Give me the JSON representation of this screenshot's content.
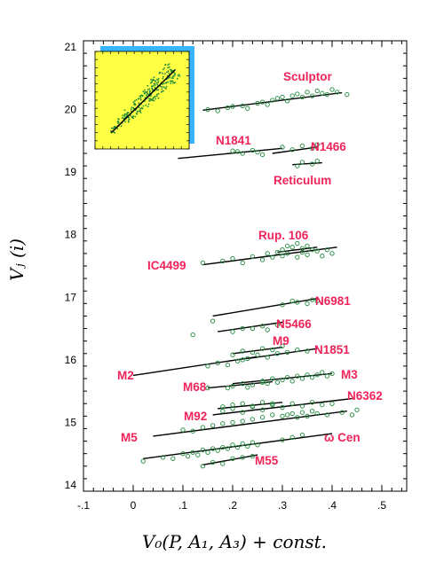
{
  "chart_data": {
    "type": "scatter",
    "title": "",
    "xlabel": "V₀(P, A₁, A₃) + const.",
    "ylabel": "Vⱼ (i)",
    "xlim": [
      -0.1,
      0.55
    ],
    "ylim": [
      13.9,
      21.1
    ],
    "xticks": [
      -0.1,
      0,
      0.1,
      0.2,
      0.3,
      0.4,
      0.5
    ],
    "xtick_labels": [
      "-.1",
      "0",
      ".1",
      ".2",
      ".3",
      ".4",
      ".5"
    ],
    "yticks": [
      14,
      15,
      16,
      17,
      18,
      19,
      20,
      21
    ],
    "ytick_labels": [
      "14",
      "15",
      "16",
      "17",
      "18",
      "19",
      "20",
      "21"
    ],
    "grid": false,
    "colors": {
      "points": "#1f8a3c",
      "fit_line": "#000000",
      "labels": "#f0245a",
      "inset_bg": "#ffff44",
      "inset_shadow": "#39b4ff"
    },
    "series": [
      {
        "name": "Sculptor",
        "fit": [
          [
            0.14,
            19.99
          ],
          [
            0.42,
            20.27
          ]
        ],
        "points": [
          [
            0.15,
            20.0
          ],
          [
            0.17,
            19.98
          ],
          [
            0.19,
            20.03
          ],
          [
            0.2,
            20.05
          ],
          [
            0.22,
            20.06
          ],
          [
            0.23,
            20.02
          ],
          [
            0.25,
            20.1
          ],
          [
            0.26,
            20.12
          ],
          [
            0.27,
            20.08
          ],
          [
            0.28,
            20.15
          ],
          [
            0.29,
            20.18
          ],
          [
            0.3,
            20.2
          ],
          [
            0.31,
            20.14
          ],
          [
            0.32,
            20.22
          ],
          [
            0.33,
            20.25
          ],
          [
            0.34,
            20.2
          ],
          [
            0.35,
            20.28
          ],
          [
            0.36,
            20.22
          ],
          [
            0.37,
            20.3
          ],
          [
            0.38,
            20.26
          ],
          [
            0.39,
            20.24
          ],
          [
            0.4,
            20.32
          ],
          [
            0.41,
            20.28
          ],
          [
            0.43,
            20.24
          ]
        ]
      },
      {
        "name": "N1841",
        "fit": [
          [
            0.09,
            19.22
          ],
          [
            0.3,
            19.38
          ]
        ],
        "points": [
          [
            0.2,
            19.34
          ],
          [
            0.21,
            19.33
          ],
          [
            0.22,
            19.3
          ],
          [
            0.24,
            19.35
          ],
          [
            0.25,
            19.32
          ],
          [
            0.26,
            19.28
          ]
        ]
      },
      {
        "name": "N1466",
        "fit": [
          [
            0.28,
            19.3
          ],
          [
            0.37,
            19.4
          ]
        ],
        "points": [
          [
            0.3,
            19.4
          ],
          [
            0.32,
            19.36
          ],
          [
            0.34,
            19.42
          ],
          [
            0.36,
            19.38
          ],
          [
            0.37,
            19.44
          ]
        ]
      },
      {
        "name": "Reticulum",
        "fit": [
          [
            0.32,
            19.12
          ],
          [
            0.38,
            19.15
          ]
        ],
        "points": [
          [
            0.33,
            19.1
          ],
          [
            0.34,
            19.16
          ],
          [
            0.36,
            19.13
          ],
          [
            0.37,
            19.18
          ]
        ]
      },
      {
        "name": "Rup. 106",
        "fit": [
          [
            0.29,
            17.72
          ],
          [
            0.37,
            17.8
          ]
        ],
        "points": [
          [
            0.3,
            17.76
          ],
          [
            0.31,
            17.82
          ],
          [
            0.32,
            17.8
          ],
          [
            0.33,
            17.86
          ],
          [
            0.34,
            17.78
          ],
          [
            0.35,
            17.82
          ],
          [
            0.36,
            17.76
          ]
        ]
      },
      {
        "name": "IC4499",
        "fit": [
          [
            0.14,
            17.52
          ],
          [
            0.41,
            17.8
          ]
        ],
        "points": [
          [
            0.14,
            17.55
          ],
          [
            0.18,
            17.58
          ],
          [
            0.2,
            17.62
          ],
          [
            0.22,
            17.55
          ],
          [
            0.24,
            17.65
          ],
          [
            0.26,
            17.6
          ],
          [
            0.27,
            17.7
          ],
          [
            0.28,
            17.64
          ],
          [
            0.29,
            17.72
          ],
          [
            0.3,
            17.66
          ],
          [
            0.31,
            17.7
          ],
          [
            0.33,
            17.64
          ],
          [
            0.34,
            17.72
          ],
          [
            0.35,
            17.68
          ],
          [
            0.37,
            17.74
          ],
          [
            0.38,
            17.66
          ],
          [
            0.39,
            17.76
          ],
          [
            0.4,
            17.7
          ]
        ]
      },
      {
        "name": "N6981",
        "fit": [
          [
            0.16,
            16.7
          ],
          [
            0.37,
            16.98
          ]
        ],
        "points": [
          [
            0.16,
            16.62
          ],
          [
            0.3,
            16.88
          ],
          [
            0.32,
            16.94
          ],
          [
            0.33,
            16.92
          ],
          [
            0.35,
            16.9
          ],
          [
            0.36,
            16.96
          ],
          [
            0.37,
            16.94
          ]
        ]
      },
      {
        "name": "N5466",
        "fit": [
          [
            0.17,
            16.45
          ],
          [
            0.3,
            16.6
          ]
        ],
        "points": [
          [
            0.12,
            16.4
          ],
          [
            0.2,
            16.45
          ],
          [
            0.22,
            16.5
          ],
          [
            0.24,
            16.5
          ],
          [
            0.26,
            16.54
          ],
          [
            0.27,
            16.48
          ],
          [
            0.29,
            16.56
          ]
        ]
      },
      {
        "name": "M9",
        "fit": [
          [
            0.2,
            16.1
          ],
          [
            0.3,
            16.2
          ]
        ],
        "points": [
          [
            0.2,
            16.08
          ],
          [
            0.22,
            16.14
          ],
          [
            0.24,
            16.12
          ],
          [
            0.26,
            16.18
          ],
          [
            0.28,
            16.16
          ],
          [
            0.3,
            16.22
          ]
        ]
      },
      {
        "name": "N1851",
        "fit": [
          [
            0.23,
            16.02
          ],
          [
            0.37,
            16.18
          ]
        ],
        "points": [
          [
            0.22,
            16.0
          ],
          [
            0.25,
            16.08
          ],
          [
            0.27,
            16.04
          ],
          [
            0.29,
            16.1
          ],
          [
            0.31,
            16.12
          ],
          [
            0.33,
            16.16
          ],
          [
            0.35,
            16.14
          ]
        ]
      },
      {
        "name": "M2",
        "fit": [
          [
            0.0,
            15.75
          ],
          [
            0.25,
            16.05
          ]
        ],
        "points": [
          [
            0.15,
            15.9
          ],
          [
            0.17,
            15.95
          ],
          [
            0.19,
            15.92
          ],
          [
            0.21,
            15.98
          ],
          [
            0.23,
            16.02
          ]
        ]
      },
      {
        "name": "M3",
        "fit": [
          [
            0.2,
            15.62
          ],
          [
            0.4,
            15.78
          ]
        ],
        "points": [
          [
            0.26,
            15.66
          ],
          [
            0.27,
            15.62
          ],
          [
            0.28,
            15.7
          ],
          [
            0.29,
            15.64
          ],
          [
            0.3,
            15.68
          ],
          [
            0.31,
            15.72
          ],
          [
            0.32,
            15.66
          ],
          [
            0.33,
            15.74
          ],
          [
            0.34,
            15.7
          ],
          [
            0.35,
            15.76
          ],
          [
            0.36,
            15.72
          ],
          [
            0.37,
            15.76
          ],
          [
            0.38,
            15.8
          ],
          [
            0.39,
            15.74
          ],
          [
            0.4,
            15.78
          ]
        ]
      },
      {
        "name": "M68",
        "fit": [
          [
            0.15,
            15.55
          ],
          [
            0.28,
            15.65
          ]
        ],
        "points": [
          [
            0.15,
            15.55
          ],
          [
            0.19,
            15.55
          ],
          [
            0.2,
            15.58
          ],
          [
            0.22,
            15.62
          ],
          [
            0.23,
            15.56
          ],
          [
            0.24,
            15.6
          ],
          [
            0.26,
            15.64
          ]
        ]
      },
      {
        "name": "N6362",
        "fit": [
          [
            0.16,
            15.12
          ],
          [
            0.44,
            15.38
          ]
        ],
        "points": [
          [
            0.18,
            15.18
          ],
          [
            0.2,
            15.22
          ],
          [
            0.22,
            15.16
          ],
          [
            0.24,
            15.25
          ],
          [
            0.26,
            15.2
          ],
          [
            0.28,
            15.28
          ],
          [
            0.3,
            15.24
          ],
          [
            0.31,
            15.12
          ],
          [
            0.32,
            15.3
          ],
          [
            0.33,
            15.08
          ],
          [
            0.34,
            15.26
          ],
          [
            0.35,
            15.1
          ],
          [
            0.36,
            15.32
          ],
          [
            0.37,
            15.14
          ],
          [
            0.38,
            15.28
          ],
          [
            0.39,
            15.12
          ],
          [
            0.4,
            15.3
          ],
          [
            0.42,
            15.16
          ],
          [
            0.44,
            15.12
          ],
          [
            0.45,
            15.2
          ]
        ]
      },
      {
        "name": "M92",
        "fit": [
          [
            0.17,
            15.22
          ],
          [
            0.3,
            15.32
          ]
        ],
        "points": [
          [
            0.18,
            15.25
          ],
          [
            0.2,
            15.28
          ],
          [
            0.22,
            15.3
          ],
          [
            0.24,
            15.26
          ],
          [
            0.26,
            15.32
          ],
          [
            0.28,
            15.3
          ]
        ]
      },
      {
        "name": "M5",
        "fit": [
          [
            0.04,
            14.78
          ],
          [
            0.43,
            15.18
          ]
        ],
        "points": [
          [
            0.1,
            14.88
          ],
          [
            0.12,
            14.86
          ],
          [
            0.14,
            14.92
          ],
          [
            0.16,
            14.95
          ],
          [
            0.18,
            14.98
          ],
          [
            0.2,
            15.0
          ],
          [
            0.22,
            15.02
          ],
          [
            0.24,
            15.05
          ],
          [
            0.26,
            15.08
          ],
          [
            0.28,
            15.12
          ],
          [
            0.3,
            15.1
          ],
          [
            0.32,
            15.14
          ],
          [
            0.34,
            15.16
          ],
          [
            0.36,
            15.18
          ]
        ]
      },
      {
        "name": "ω Cen",
        "fit": [
          [
            0.02,
            14.42
          ],
          [
            0.4,
            14.82
          ]
        ],
        "points": [
          [
            0.02,
            14.38
          ],
          [
            0.06,
            14.44
          ],
          [
            0.08,
            14.42
          ],
          [
            0.1,
            14.5
          ],
          [
            0.11,
            14.46
          ],
          [
            0.12,
            14.52
          ],
          [
            0.13,
            14.48
          ],
          [
            0.14,
            14.56
          ],
          [
            0.15,
            14.52
          ],
          [
            0.16,
            14.58
          ],
          [
            0.17,
            14.55
          ],
          [
            0.18,
            14.6
          ],
          [
            0.19,
            14.58
          ],
          [
            0.2,
            14.64
          ],
          [
            0.21,
            14.6
          ],
          [
            0.22,
            14.66
          ],
          [
            0.23,
            14.62
          ],
          [
            0.24,
            14.68
          ],
          [
            0.25,
            14.64
          ],
          [
            0.3,
            14.72
          ],
          [
            0.32,
            14.76
          ],
          [
            0.34,
            14.8
          ]
        ]
      },
      {
        "name": "M55",
        "fit": [
          [
            0.14,
            14.32
          ],
          [
            0.25,
            14.48
          ]
        ],
        "points": [
          [
            0.14,
            14.3
          ],
          [
            0.16,
            14.36
          ],
          [
            0.18,
            14.34
          ],
          [
            0.2,
            14.42
          ],
          [
            0.22,
            14.44
          ],
          [
            0.24,
            14.46
          ]
        ]
      }
    ]
  }
}
